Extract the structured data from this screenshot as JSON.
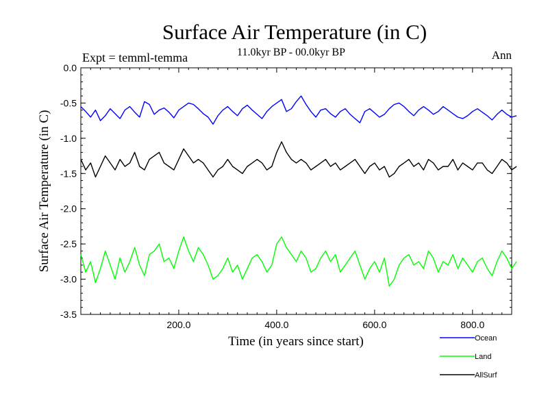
{
  "chart_data": {
    "type": "line",
    "title": "Surface Air Temperature (in C)",
    "subtitle": "11.0kyr BP - 00.0kyr BP",
    "expt_label": "Expt = temml-temma",
    "period_label": "Ann",
    "xlabel": "Time (in years since start)",
    "ylabel": "Surface Air Temperature (in C)",
    "xlim": [
      0,
      880
    ],
    "ylim": [
      -3.5,
      0.0
    ],
    "x_ticks": [
      200,
      400,
      600,
      800
    ],
    "x_tick_labels": [
      "200.0",
      "400.0",
      "600.0",
      "800.0"
    ],
    "y_ticks": [
      0.0,
      -0.5,
      -1.0,
      -1.5,
      -2.0,
      -2.5,
      -3.0,
      -3.5
    ],
    "y_tick_labels": [
      "0.0",
      "-0.5",
      "-1.0",
      "-1.5",
      "-2.0",
      "-2.5",
      "-3.0",
      "-3.5"
    ],
    "x_step": 10,
    "series": [
      {
        "name": "Ocean",
        "color": "#0000ff",
        "values": [
          -0.55,
          -0.62,
          -0.7,
          -0.6,
          -0.75,
          -0.68,
          -0.58,
          -0.65,
          -0.72,
          -0.6,
          -0.55,
          -0.63,
          -0.7,
          -0.48,
          -0.52,
          -0.66,
          -0.6,
          -0.57,
          -0.63,
          -0.71,
          -0.6,
          -0.55,
          -0.5,
          -0.52,
          -0.58,
          -0.65,
          -0.7,
          -0.8,
          -0.68,
          -0.6,
          -0.55,
          -0.62,
          -0.68,
          -0.58,
          -0.53,
          -0.6,
          -0.66,
          -0.72,
          -0.62,
          -0.55,
          -0.5,
          -0.45,
          -0.62,
          -0.58,
          -0.48,
          -0.4,
          -0.52,
          -0.62,
          -0.7,
          -0.6,
          -0.58,
          -0.65,
          -0.7,
          -0.62,
          -0.58,
          -0.66,
          -0.72,
          -0.78,
          -0.62,
          -0.58,
          -0.64,
          -0.7,
          -0.66,
          -0.58,
          -0.52,
          -0.5,
          -0.55,
          -0.62,
          -0.68,
          -0.6,
          -0.55,
          -0.6,
          -0.66,
          -0.62,
          -0.55,
          -0.6,
          -0.65,
          -0.7,
          -0.72,
          -0.68,
          -0.62,
          -0.58,
          -0.63,
          -0.68,
          -0.74,
          -0.66,
          -0.6,
          -0.66,
          -0.7,
          -0.68
        ]
      },
      {
        "name": "Land",
        "color": "#00ff00",
        "values": [
          -2.65,
          -2.9,
          -2.75,
          -3.05,
          -2.85,
          -2.6,
          -2.8,
          -3.0,
          -2.7,
          -2.9,
          -2.75,
          -2.55,
          -2.8,
          -2.95,
          -2.65,
          -2.6,
          -2.5,
          -2.75,
          -2.7,
          -2.85,
          -2.6,
          -2.4,
          -2.6,
          -2.75,
          -2.55,
          -2.65,
          -2.8,
          -3.0,
          -2.95,
          -2.85,
          -2.7,
          -2.9,
          -2.8,
          -3.0,
          -2.85,
          -2.7,
          -2.65,
          -2.75,
          -2.9,
          -2.8,
          -2.5,
          -2.4,
          -2.55,
          -2.65,
          -2.75,
          -2.6,
          -2.7,
          -2.9,
          -2.85,
          -2.7,
          -2.6,
          -2.75,
          -2.65,
          -2.9,
          -2.8,
          -2.7,
          -2.6,
          -2.8,
          -3.0,
          -2.85,
          -2.75,
          -2.9,
          -2.7,
          -3.1,
          -3.0,
          -2.8,
          -2.7,
          -2.65,
          -2.8,
          -2.75,
          -2.85,
          -2.6,
          -2.7,
          -2.9,
          -2.75,
          -2.8,
          -2.65,
          -2.85,
          -2.7,
          -2.8,
          -2.9,
          -2.75,
          -2.7,
          -2.85,
          -2.95,
          -2.75,
          -2.6,
          -2.7,
          -2.85,
          -2.75
        ]
      },
      {
        "name": "AllSurf",
        "color": "#000000",
        "values": [
          -1.3,
          -1.45,
          -1.35,
          -1.55,
          -1.4,
          -1.25,
          -1.35,
          -1.45,
          -1.3,
          -1.4,
          -1.35,
          -1.2,
          -1.4,
          -1.45,
          -1.3,
          -1.25,
          -1.2,
          -1.35,
          -1.4,
          -1.45,
          -1.3,
          -1.15,
          -1.25,
          -1.35,
          -1.3,
          -1.35,
          -1.45,
          -1.55,
          -1.45,
          -1.4,
          -1.3,
          -1.4,
          -1.45,
          -1.5,
          -1.4,
          -1.35,
          -1.3,
          -1.35,
          -1.45,
          -1.4,
          -1.2,
          -1.05,
          -1.2,
          -1.3,
          -1.35,
          -1.3,
          -1.35,
          -1.45,
          -1.4,
          -1.35,
          -1.3,
          -1.4,
          -1.35,
          -1.45,
          -1.4,
          -1.35,
          -1.3,
          -1.4,
          -1.5,
          -1.4,
          -1.35,
          -1.45,
          -1.4,
          -1.55,
          -1.5,
          -1.4,
          -1.35,
          -1.3,
          -1.4,
          -1.35,
          -1.45,
          -1.3,
          -1.35,
          -1.45,
          -1.4,
          -1.4,
          -1.3,
          -1.45,
          -1.35,
          -1.4,
          -1.45,
          -1.35,
          -1.35,
          -1.45,
          -1.5,
          -1.4,
          -1.3,
          -1.35,
          -1.45,
          -1.4
        ]
      }
    ],
    "legend": [
      {
        "label": "Ocean",
        "color": "#0000ff"
      },
      {
        "label": "Land",
        "color": "#00ff00"
      },
      {
        "label": "AllSurf",
        "color": "#000000"
      }
    ]
  }
}
